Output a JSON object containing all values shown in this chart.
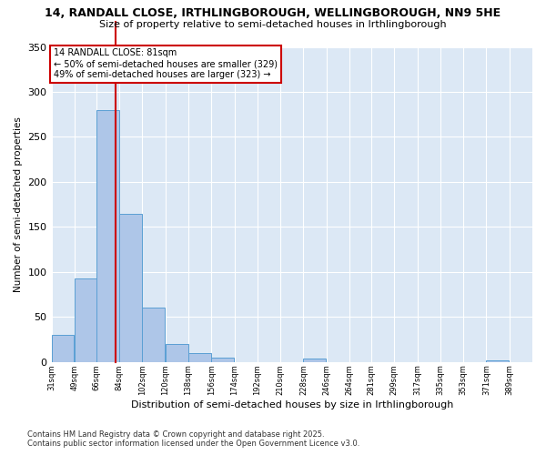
{
  "title": "14, RANDALL CLOSE, IRTHLINGBOROUGH, WELLINGBOROUGH, NN9 5HE",
  "subtitle": "Size of property relative to semi-detached houses in Irthlingborough",
  "xlabel": "Distribution of semi-detached houses by size in Irthlingborough",
  "ylabel": "Number of semi-detached properties",
  "bins": [
    31,
    49,
    66,
    84,
    102,
    120,
    138,
    156,
    174,
    192,
    210,
    228,
    246,
    264,
    281,
    299,
    317,
    335,
    353,
    371,
    389
  ],
  "values": [
    30,
    93,
    280,
    165,
    60,
    20,
    10,
    5,
    0,
    0,
    0,
    4,
    0,
    0,
    0,
    0,
    0,
    0,
    0,
    2
  ],
  "bar_color": "#aec6e8",
  "bar_edge_color": "#5a9fd4",
  "property_size": 81,
  "property_label": "14 RANDALL CLOSE: 81sqm",
  "pct_smaller": 50,
  "count_smaller": 329,
  "pct_larger": 49,
  "count_larger": 323,
  "vline_color": "#cc0000",
  "box_edge_color": "#cc0000",
  "background_color": "#dce8f5",
  "ylim": [
    0,
    350
  ],
  "yticks": [
    0,
    50,
    100,
    150,
    200,
    250,
    300,
    350
  ],
  "footer_line1": "Contains HM Land Registry data © Crown copyright and database right 2025.",
  "footer_line2": "Contains public sector information licensed under the Open Government Licence v3.0.",
  "tick_labels": [
    "31sqm",
    "49sqm",
    "66sqm",
    "84sqm",
    "102sqm",
    "120sqm",
    "138sqm",
    "156sqm",
    "174sqm",
    "192sqm",
    "210sqm",
    "228sqm",
    "246sqm",
    "264sqm",
    "281sqm",
    "299sqm",
    "317sqm",
    "335sqm",
    "353sqm",
    "371sqm",
    "389sqm"
  ]
}
